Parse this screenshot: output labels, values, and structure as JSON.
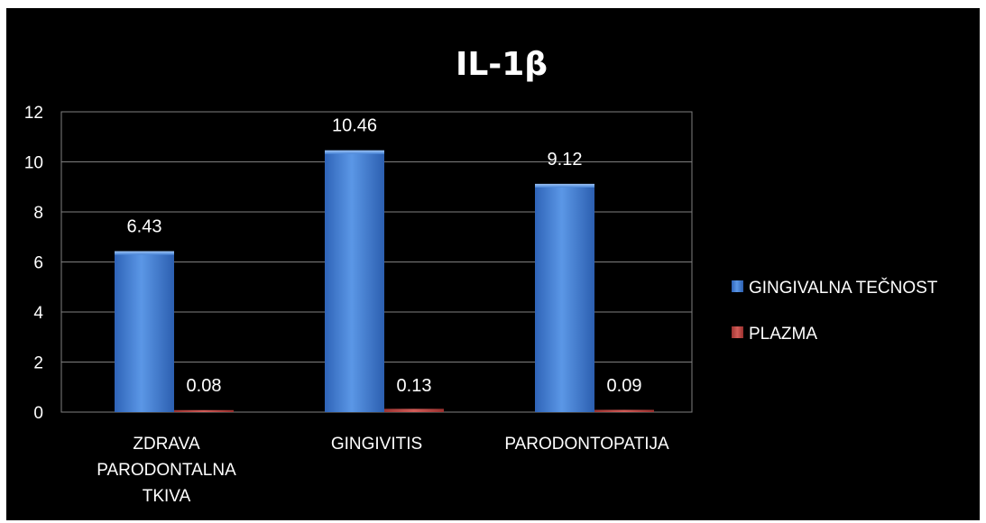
{
  "chart_data": {
    "type": "bar",
    "title": "IL-1β",
    "xlabel": "",
    "ylabel": "",
    "ylim": [
      0,
      12
    ],
    "yticks": [
      0,
      2,
      4,
      6,
      8,
      10,
      12
    ],
    "grid": true,
    "legend_position": "right",
    "categories": [
      [
        "ZDRAVA",
        "PARODONTALNA",
        "TKIVA"
      ],
      [
        "GINGIVITIS"
      ],
      [
        "PARODONTOPATIJA"
      ]
    ],
    "series": [
      {
        "name": "GINGIVALNA TEČNOST",
        "color": "#4a86d8",
        "values": [
          6.43,
          10.46,
          9.12
        ],
        "value_labels": [
          "6.43",
          "10.46",
          "9.12"
        ]
      },
      {
        "name": "PLAZMA",
        "color": "#c0504d",
        "values": [
          0.08,
          0.13,
          0.09
        ],
        "value_labels": [
          "0.08",
          "0.13",
          "0.09"
        ]
      }
    ]
  }
}
